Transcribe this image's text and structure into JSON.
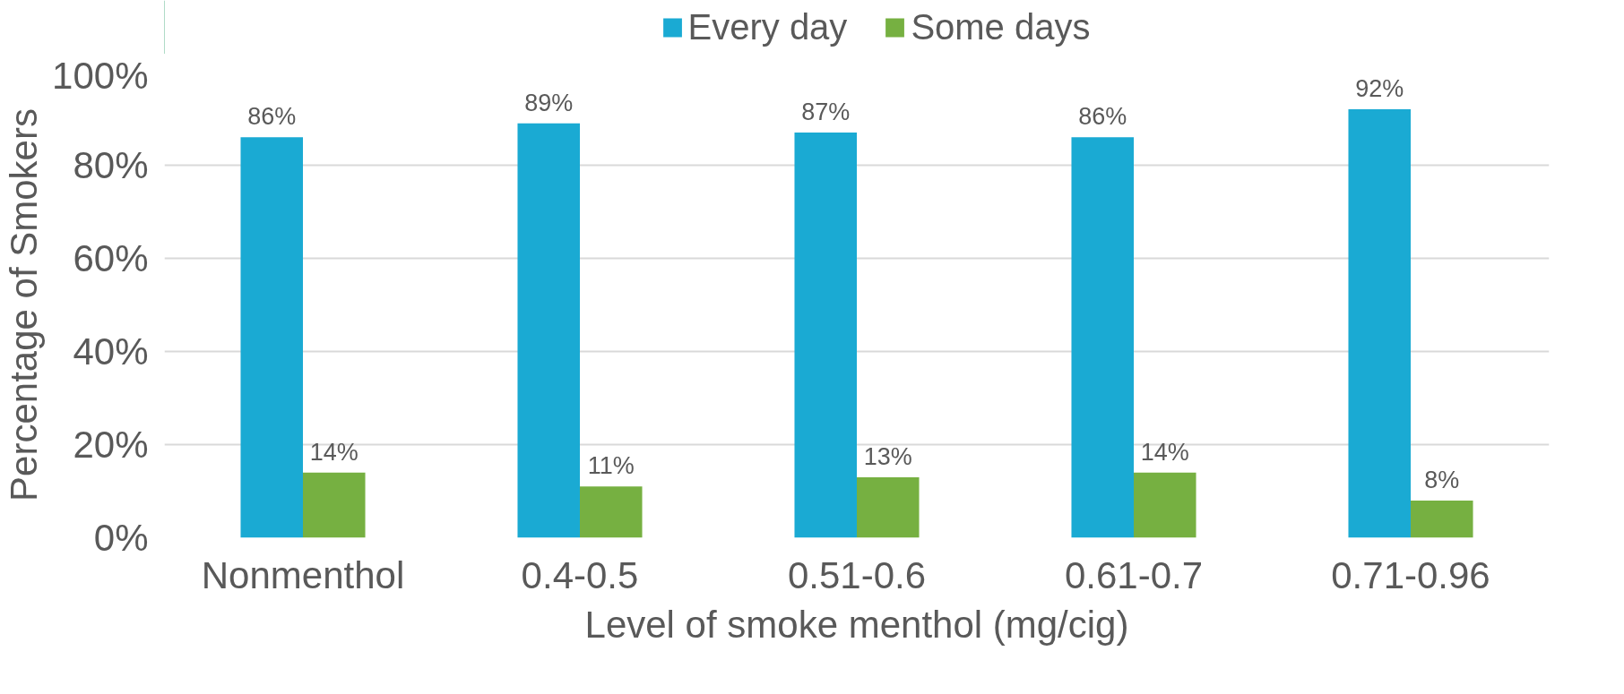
{
  "chart_data": {
    "type": "bar",
    "categories": [
      "Nonmenthol",
      "0.4-0.5",
      "0.51-0.6",
      "0.61-0.7",
      "0.71-0.96"
    ],
    "series": [
      {
        "name": "Every day",
        "color": "#1aaad3",
        "values": [
          86,
          89,
          87,
          86,
          92
        ],
        "value_labels": [
          "86%",
          "89%",
          "87%",
          "86%",
          "92%"
        ]
      },
      {
        "name": "Some days",
        "color": "#76b041",
        "values": [
          14,
          11,
          13,
          14,
          8
        ],
        "value_labels": [
          "14%",
          "11%",
          "13%",
          "14%",
          "8%"
        ]
      }
    ],
    "xlabel": "Level of smoke menthol (mg/cig)",
    "ylabel": "Percentage of Smokers",
    "ylim": [
      0,
      100
    ],
    "yticks": [
      {
        "value": 0,
        "label": "0%"
      },
      {
        "value": 20,
        "label": "20%"
      },
      {
        "value": 40,
        "label": "40%"
      },
      {
        "value": 60,
        "label": "60%"
      },
      {
        "value": 80,
        "label": "80%"
      },
      {
        "value": 100,
        "label": "100%"
      }
    ],
    "grid": "y",
    "legend": "top"
  }
}
